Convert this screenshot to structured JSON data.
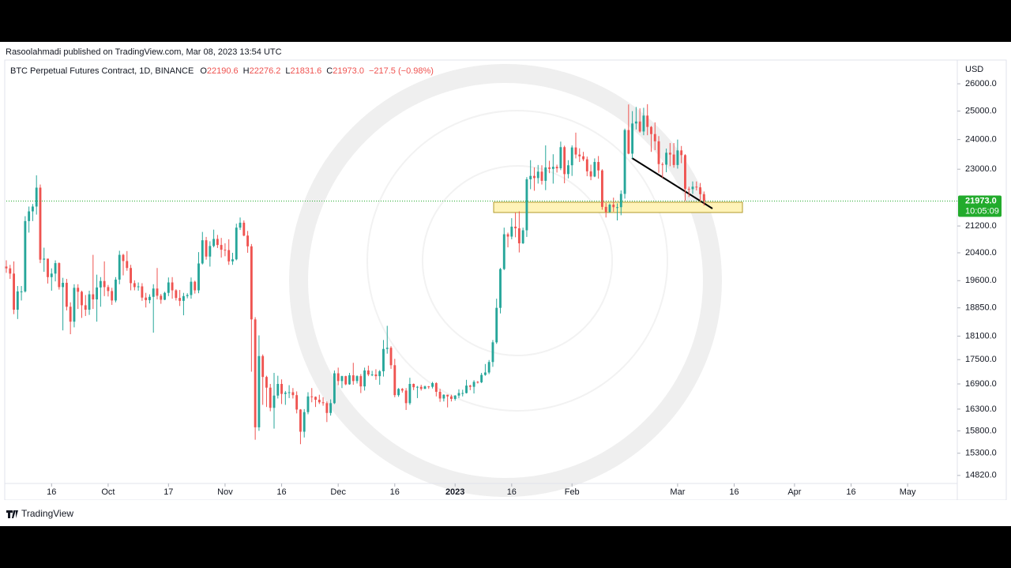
{
  "chart_data": {
    "type": "candlestick",
    "published": "Rasoolahmadi published on TradingView.com, Mar 08, 2023 13:54 UTC",
    "title": "BTC Perpetual Futures Contract, 1D, BINANCE",
    "ohlc_legend": [
      {
        "key": "O",
        "value": "22190.6"
      },
      {
        "key": "H",
        "value": "22276.2"
      },
      {
        "key": "L",
        "value": "21831.6"
      },
      {
        "key": "C",
        "value": "21973.0"
      }
    ],
    "change": "−217.5 (−0.98%)",
    "y_unit": "USD",
    "price_tag": "21973.0",
    "countdown": "10:05:09",
    "footer": "TradingView",
    "log_scale": true,
    "up_color": "#26a69a",
    "down_color": "#ef5350",
    "last_price_color": "#22ab2c",
    "xlim": [
      3,
      251.6
    ],
    "ylim": [
      14650,
      26780
    ],
    "xticks": [
      {
        "value": 15,
        "label": "16"
      },
      {
        "value": 30,
        "label": "Oct"
      },
      {
        "value": 46,
        "label": "17"
      },
      {
        "value": 61,
        "label": "Nov"
      },
      {
        "value": 76,
        "label": "16"
      },
      {
        "value": 91,
        "label": "Dec"
      },
      {
        "value": 106,
        "label": "16"
      },
      {
        "value": 122,
        "label": "2023"
      },
      {
        "value": 137,
        "label": "16"
      },
      {
        "value": 153,
        "label": "Feb"
      },
      {
        "value": 181,
        "label": "Mar"
      },
      {
        "value": 196,
        "label": "16"
      },
      {
        "value": 212,
        "label": "Apr"
      },
      {
        "value": 227,
        "label": "16"
      },
      {
        "value": 242,
        "label": "May"
      }
    ],
    "yticks": [
      {
        "value": 26000,
        "label": "26000.0"
      },
      {
        "value": 25000,
        "label": "25000.0"
      },
      {
        "value": 24000,
        "label": "24000.0"
      },
      {
        "value": 23000,
        "label": "23000.0"
      },
      {
        "value": 21200,
        "label": "21200.0"
      },
      {
        "value": 20400,
        "label": "20400.0"
      },
      {
        "value": 19600,
        "label": "19600.0"
      },
      {
        "value": 18850,
        "label": "18850.0"
      },
      {
        "value": 18100,
        "label": "18100.0"
      },
      {
        "value": 17500,
        "label": "17500.0"
      },
      {
        "value": 16900,
        "label": "16900.0"
      },
      {
        "value": 16300,
        "label": "16300.0"
      },
      {
        "value": 15800,
        "label": "15800.0"
      },
      {
        "value": 15300,
        "label": "15300.0"
      },
      {
        "value": 14820,
        "label": "14820.0"
      }
    ],
    "x": [
      3,
      4,
      5,
      6,
      7,
      8,
      9,
      10,
      11,
      12,
      13,
      14,
      15,
      16,
      17,
      18,
      19,
      20,
      21,
      22,
      23,
      24,
      25,
      26,
      27,
      28,
      29,
      30,
      31,
      32,
      33,
      34,
      35,
      36,
      37,
      38,
      39,
      40,
      41,
      42,
      43,
      44,
      45,
      46,
      47,
      48,
      49,
      50,
      51,
      52,
      53,
      54,
      55,
      56,
      57,
      58,
      59,
      60,
      61,
      62,
      63,
      64,
      65,
      66,
      67,
      68,
      69,
      70,
      71,
      72,
      73,
      74,
      75,
      76,
      77,
      78,
      79,
      80,
      81,
      82,
      83,
      84,
      85,
      86,
      87,
      88,
      89,
      90,
      91,
      92,
      93,
      94,
      95,
      96,
      97,
      98,
      99,
      100,
      101,
      102,
      103,
      104,
      105,
      106,
      107,
      108,
      109,
      110,
      111,
      112,
      113,
      114,
      115,
      116,
      117,
      118,
      119,
      120,
      121,
      122,
      123,
      124,
      125,
      126,
      127,
      128,
      129,
      130,
      131,
      132,
      133,
      134,
      135,
      136,
      137,
      138,
      139,
      140,
      141,
      142,
      143,
      144,
      145,
      146,
      147,
      148,
      149,
      150,
      151,
      152,
      153,
      154,
      155,
      156,
      157,
      158,
      159,
      160,
      161,
      162,
      163,
      164,
      165,
      166,
      167,
      168,
      169,
      170,
      171,
      172,
      173,
      174,
      175,
      176,
      177,
      178,
      179,
      180,
      181,
      182,
      183,
      184,
      185,
      186,
      187,
      188
    ],
    "open": [
      20000,
      19950,
      19800,
      18800,
      19300,
      19300,
      21350,
      21650,
      21800,
      22400,
      20200,
      20230,
      19700,
      19800,
      20100,
      19420,
      19540,
      18880,
      18480,
      19400,
      19290,
      18920,
      18800,
      19220,
      19080,
      19410,
      19590,
      19420,
      19310,
      19050,
      19630,
      20340,
      20160,
      19960,
      19530,
      19420,
      19440,
      19130,
      19060,
      19150,
      19380,
      19180,
      19070,
      19260,
      19550,
      19330,
      19120,
      19040,
      19170,
      19200,
      19570,
      19330,
      20090,
      20770,
      20290,
      20600,
      20810,
      20630,
      20490,
      20480,
      20150,
      20210,
      21150,
      21300,
      20910,
      20590,
      18540,
      15880,
      17590,
      17070,
      16810,
      16330,
      16620,
      16900,
      16660,
      16690,
      16700,
      16630,
      16290,
      15780,
      16230,
      16600,
      16590,
      16520,
      16460,
      16440,
      16210,
      16440,
      17160,
      16970,
      17090,
      16890,
      17110,
      16970,
      17090,
      16840,
      17230,
      17130,
      17130,
      17090,
      17210,
      17770,
      17800,
      17360,
      16630,
      16780,
      16740,
      16440,
      16900,
      16820,
      16830,
      16780,
      16840,
      16830,
      16920,
      16710,
      16550,
      16640,
      16600,
      16540,
      16620,
      16680,
      16680,
      16860,
      16830,
      16950,
      16940,
      17120,
      17180,
      17440,
      17940,
      18850,
      19930,
      20950,
      20880,
      21180,
      21130,
      20680,
      21070,
      22670,
      22780,
      22710,
      22920,
      22620,
      23060,
      23010,
      23080,
      23030,
      23740,
      22840,
      23130,
      23730,
      23490,
      23430,
      23330,
      22930,
      22760,
      23240,
      22960,
      21790,
      21630,
      21860,
      21780,
      21780,
      22200,
      24330,
      23520,
      24560,
      24630,
      24280,
      24840,
      24440,
      24190,
      23940,
      23170,
      23150,
      23550,
      23490,
      23140,
      23630,
      23470,
      22360,
      22350,
      22430,
      22410,
      22190.6
    ],
    "high": [
      20180,
      20050,
      20150,
      19450,
      19450,
      21500,
      21800,
      21880,
      22800,
      22500,
      20550,
      20200,
      19950,
      20180,
      20120,
      19680,
      19650,
      19000,
      19500,
      19500,
      19320,
      19200,
      19320,
      20340,
      19770,
      19700,
      20150,
      19480,
      19400,
      19700,
      20460,
      20370,
      20450,
      20050,
      19610,
      19550,
      19530,
      19260,
      19220,
      19500,
      19960,
      19230,
      19290,
      19690,
      19700,
      19360,
      19340,
      19260,
      19250,
      19690,
      19600,
      20420,
      21020,
      20870,
      20740,
      21090,
      20930,
      20840,
      20680,
      20800,
      20400,
      21270,
      21460,
      21370,
      21050,
      20660,
      18600,
      18120,
      17630,
      17100,
      16900,
      17170,
      17100,
      17010,
      16730,
      16870,
      16800,
      16720,
      16300,
      16300,
      16700,
      16800,
      16600,
      16640,
      16580,
      16480,
      16530,
      17230,
      17300,
      17100,
      17100,
      17170,
      17420,
      17110,
      17140,
      17300,
      17350,
      17220,
      17260,
      17240,
      18000,
      18370,
      17840,
      17520,
      16800,
      16800,
      16800,
      17050,
      16910,
      16850,
      16880,
      16860,
      16850,
      16950,
      16940,
      16780,
      16650,
      16640,
      16640,
      16630,
      16770,
      16760,
      17000,
      16880,
      16990,
      16970,
      17170,
      17390,
      17490,
      18000,
      19100,
      19960,
      21150,
      21000,
      21440,
      21620,
      21650,
      21150,
      22740,
      23300,
      23060,
      23140,
      23130,
      23800,
      23280,
      23500,
      23150,
      23930,
      23790,
      23300,
      23800,
      24240,
      23700,
      23580,
      23420,
      23150,
      23360,
      23440,
      23000,
      21910,
      21900,
      22080,
      21900,
      22310,
      24380,
      25240,
      25000,
      25150,
      25100,
      25120,
      25250,
      24470,
      24600,
      24120,
      23230,
      23690,
      23880,
      23880,
      24000,
      23780,
      23500,
      22430,
      22600,
      22600,
      22550,
      22276.2
    ],
    "low": [
      19820,
      19650,
      18680,
      18550,
      19050,
      19270,
      21000,
      21350,
      21550,
      20100,
      19850,
      19520,
      19320,
      19580,
      19350,
      18250,
      18780,
      18150,
      18330,
      18820,
      18580,
      18630,
      18660,
      18820,
      18480,
      18880,
      19170,
      19160,
      18930,
      19000,
      19500,
      19750,
      19880,
      19330,
      19330,
      19320,
      19040,
      18860,
      18970,
      18190,
      19080,
      18960,
      19060,
      19170,
      19100,
      19050,
      18900,
      18650,
      19110,
      19100,
      19240,
      19250,
      20060,
      20200,
      20000,
      20560,
      20540,
      20260,
      20300,
      20050,
      20050,
      20180,
      21080,
      20890,
      20400,
      17200,
      15600,
      15800,
      16400,
      16350,
      16250,
      15850,
      16550,
      16420,
      16400,
      16560,
      16550,
      16200,
      15500,
      15650,
      16180,
      16460,
      16350,
      16420,
      16380,
      16000,
      16150,
      16420,
      16870,
      16800,
      16870,
      16880,
      16880,
      16910,
      16680,
      16740,
      17090,
      17090,
      17000,
      16880,
      17080,
      17650,
      17270,
      16580,
      16590,
      16690,
      16280,
      16400,
      16750,
      16560,
      16740,
      16780,
      16780,
      16790,
      16600,
      16470,
      16480,
      16340,
      16480,
      16500,
      16560,
      16600,
      16670,
      16750,
      16670,
      16910,
      16920,
      17100,
      17140,
      17320,
      17900,
      18700,
      19900,
      20560,
      20800,
      20860,
      20410,
      20660,
      20870,
      22350,
      22300,
      22530,
      22500,
      22320,
      22870,
      22530,
      22890,
      22970,
      22540,
      22700,
      22780,
      23360,
      23240,
      23270,
      22770,
      22640,
      22740,
      22690,
      21700,
      21460,
      21600,
      21640,
      21370,
      21530,
      22050,
      23500,
      23350,
      24350,
      24240,
      24150,
      24150,
      23580,
      23640,
      22880,
      22720,
      22900,
      23100,
      23050,
      23020,
      23200,
      21970,
      22100,
      22200,
      22310,
      21950,
      21831.6
    ],
    "close": [
      19950,
      19800,
      18800,
      19300,
      19300,
      21350,
      21650,
      21800,
      22400,
      20200,
      20230,
      19700,
      19800,
      20100,
      19420,
      19540,
      18880,
      18480,
      19400,
      19290,
      18920,
      18800,
      19220,
      19080,
      19410,
      19590,
      19420,
      19310,
      19050,
      19630,
      20340,
      20160,
      19960,
      19530,
      19420,
      19440,
      19130,
      19060,
      19150,
      19380,
      19180,
      19070,
      19260,
      19550,
      19330,
      19120,
      19040,
      19170,
      19200,
      19570,
      19330,
      20090,
      20770,
      20290,
      20600,
      20810,
      20630,
      20490,
      20480,
      20150,
      20210,
      21150,
      21300,
      20910,
      20590,
      18540,
      15880,
      17590,
      17070,
      16810,
      16330,
      16620,
      16900,
      16660,
      16690,
      16700,
      16630,
      16290,
      15780,
      16230,
      16600,
      16590,
      16520,
      16460,
      16440,
      16210,
      16440,
      17160,
      16970,
      17090,
      16890,
      17110,
      16970,
      17090,
      16840,
      17230,
      17130,
      17130,
      17090,
      17210,
      17770,
      17800,
      17360,
      16630,
      16780,
      16740,
      16440,
      16900,
      16820,
      16830,
      16780,
      16840,
      16830,
      16920,
      16710,
      16550,
      16640,
      16600,
      16540,
      16620,
      16680,
      16680,
      16860,
      16830,
      16950,
      16940,
      17120,
      17180,
      17440,
      17940,
      18850,
      19930,
      20950,
      20880,
      21180,
      21130,
      20680,
      21070,
      22670,
      22780,
      22710,
      22920,
      22620,
      23060,
      23010,
      23080,
      23030,
      23740,
      22840,
      23130,
      23730,
      23490,
      23430,
      23330,
      22930,
      22760,
      23240,
      22960,
      21790,
      21630,
      21860,
      21780,
      21780,
      22200,
      24330,
      23520,
      24560,
      24630,
      24280,
      24840,
      24440,
      24190,
      23940,
      23170,
      23150,
      23550,
      23490,
      23140,
      23630,
      23470,
      22360,
      22350,
      22430,
      22410,
      22190.6,
      21973
    ]
  }
}
